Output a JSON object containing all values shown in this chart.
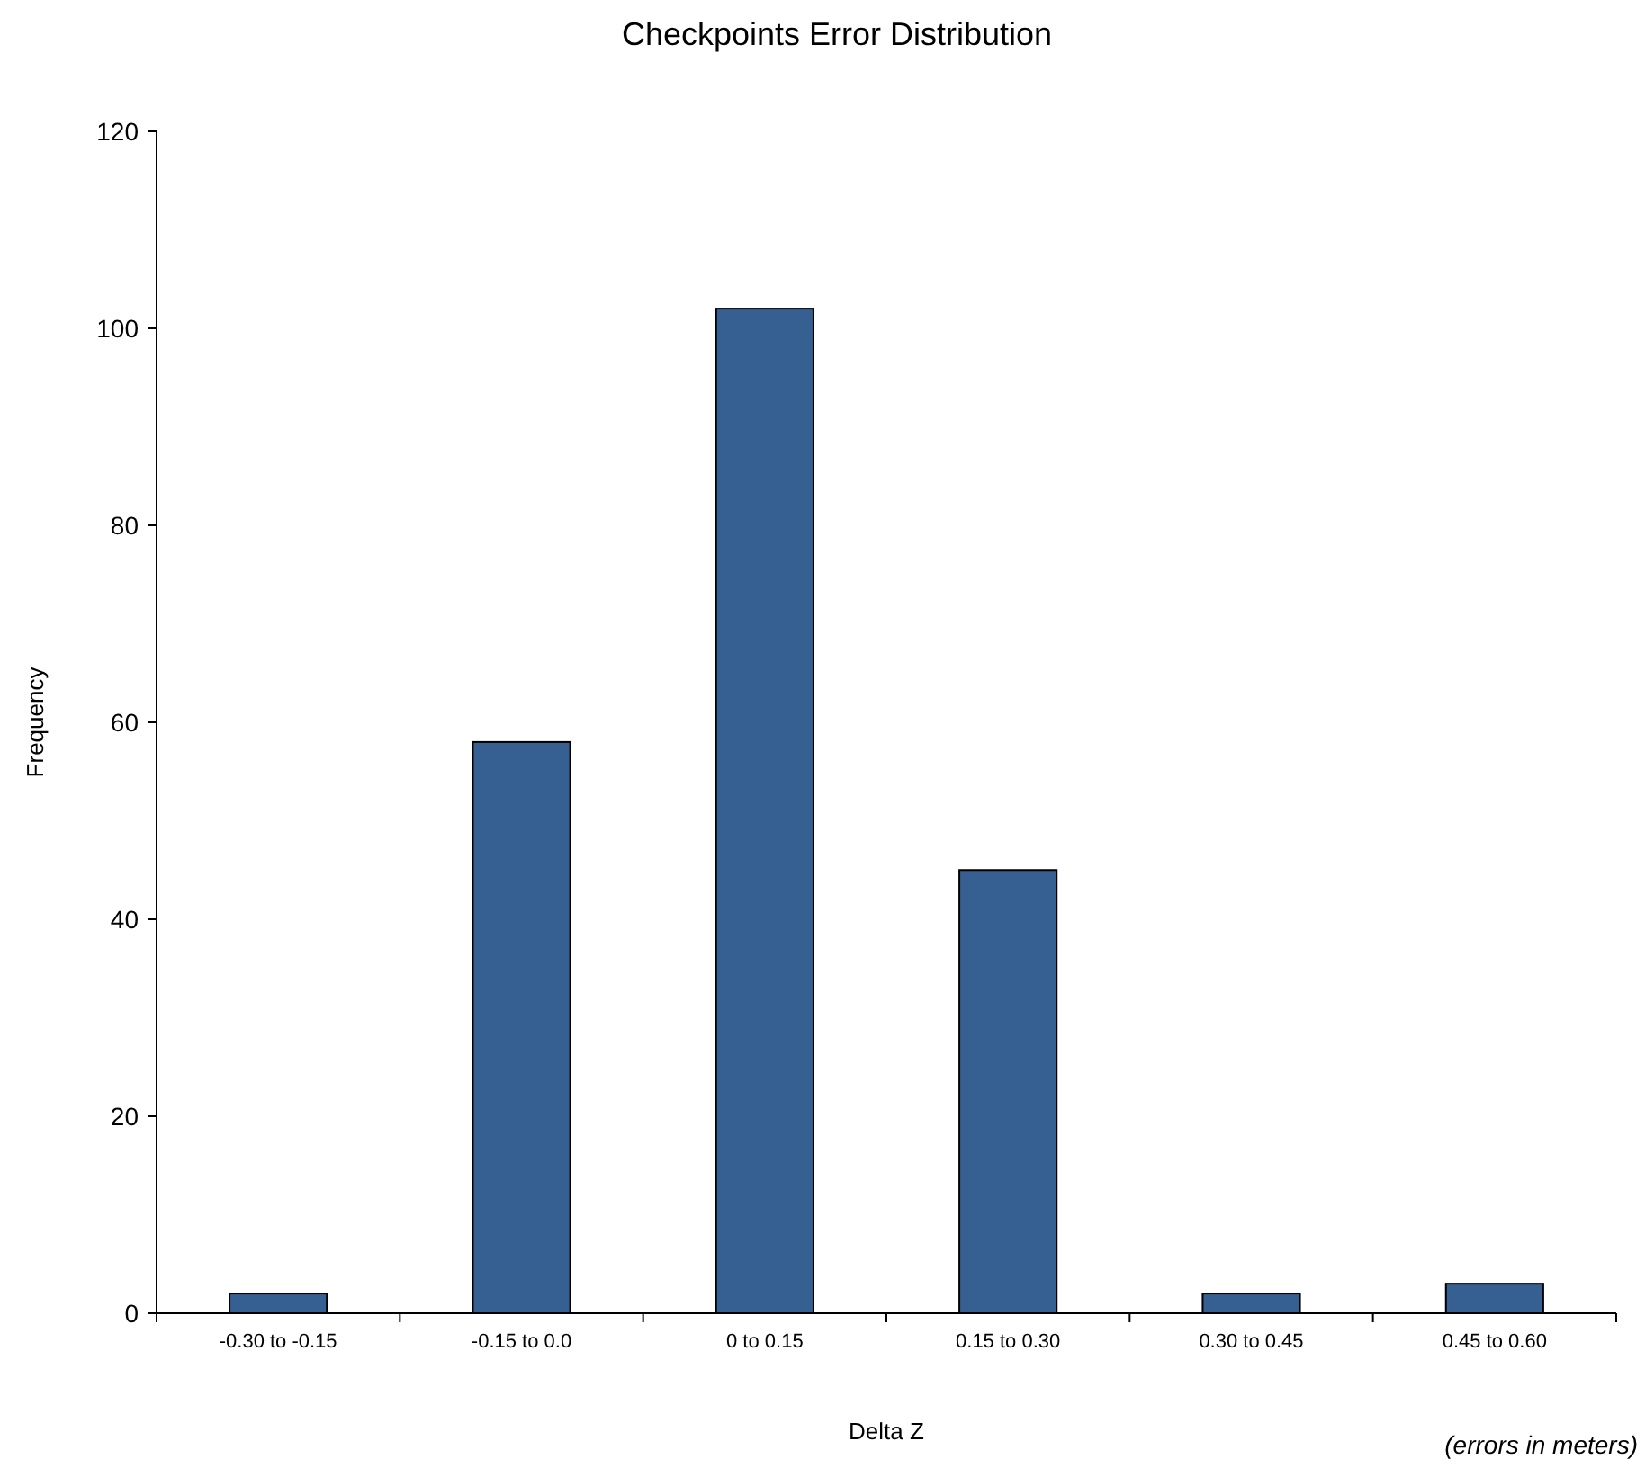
{
  "chart_data": {
    "type": "bar",
    "title": "Checkpoints Error Distribution",
    "xlabel": "Delta Z",
    "ylabel": "Frequency",
    "categories": [
      "-0.30 to -0.15",
      "-0.15 to 0.0",
      "0 to 0.15",
      "0.15 to 0.30",
      "0.30 to 0.45",
      "0.45 to 0.60"
    ],
    "values": [
      2,
      58,
      102,
      45,
      2,
      3
    ],
    "color": "#366092",
    "ylim": [
      0,
      120
    ],
    "yticks": [
      0,
      20,
      40,
      60,
      80,
      100,
      120
    ],
    "grid": false,
    "annotations": [
      "(errors in meters)"
    ]
  }
}
